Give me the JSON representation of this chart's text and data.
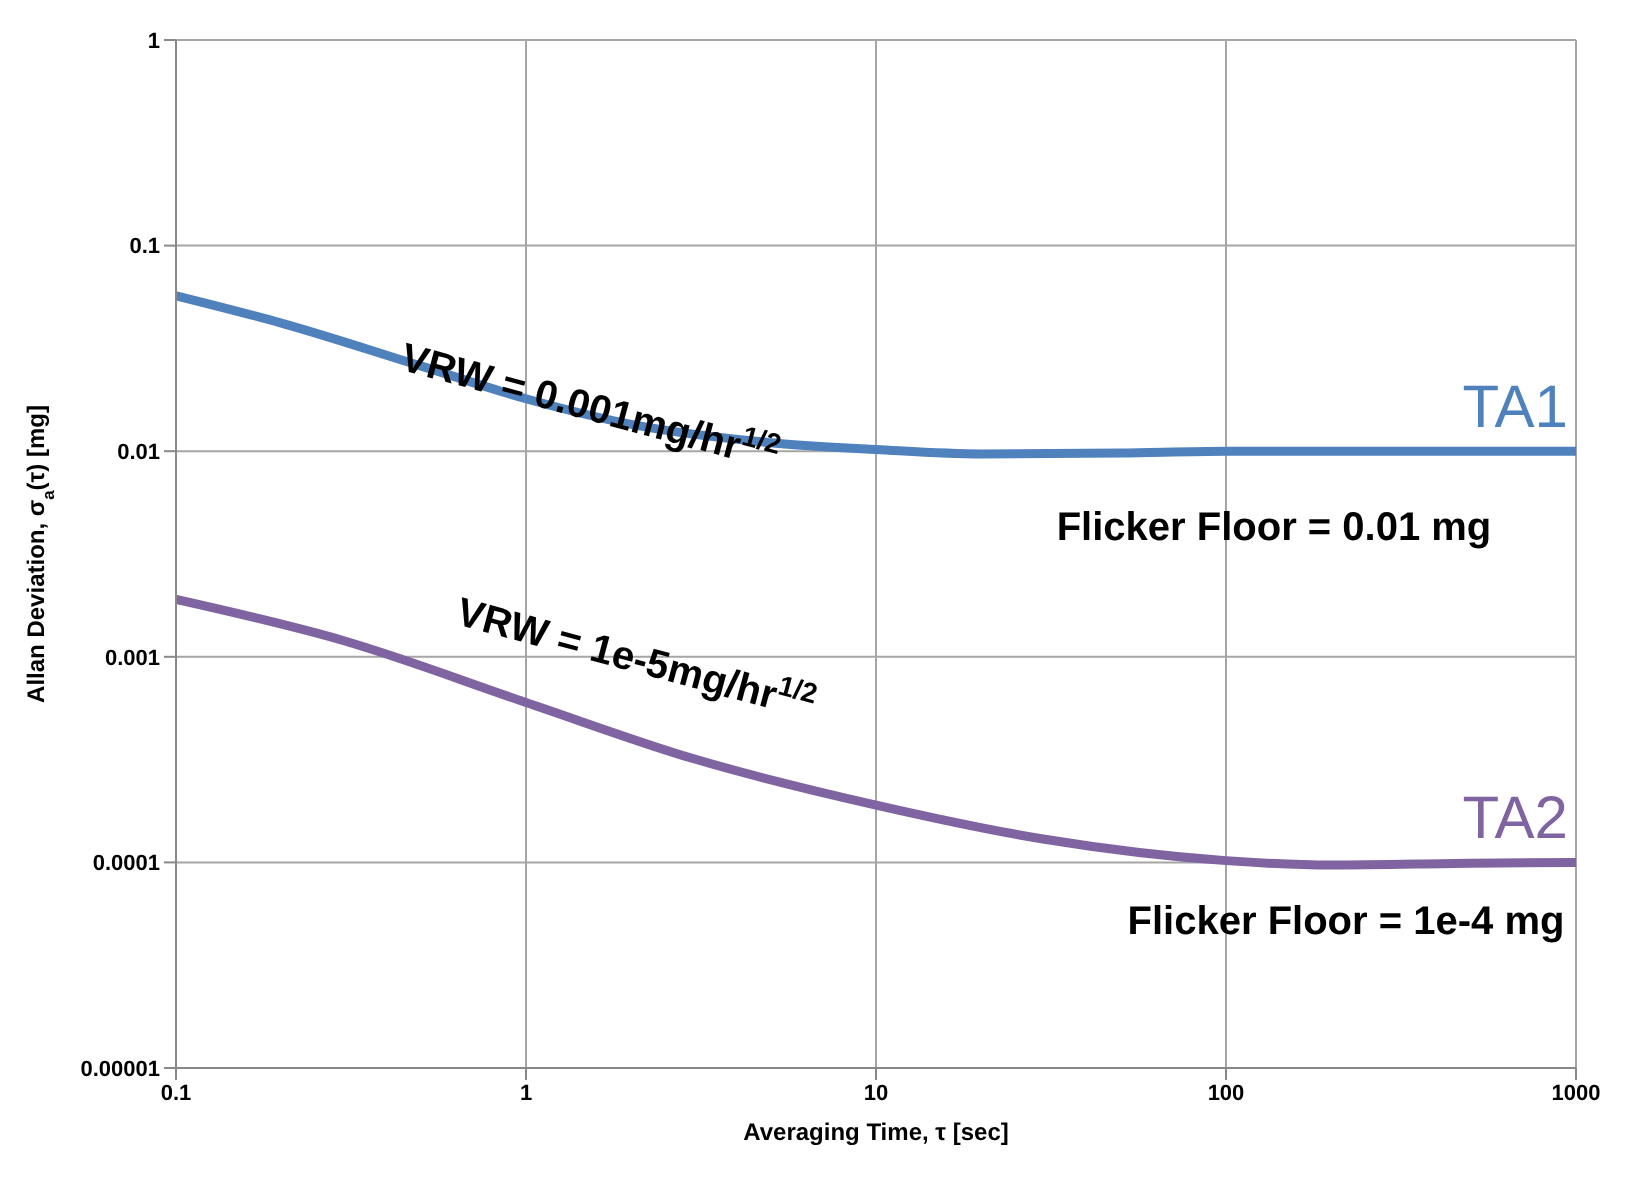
{
  "chart_data": {
    "type": "line",
    "xlabel": "Averaging Time, τ [sec]",
    "ylabel": "Allan Deviation, σ$_{a}$(τ) [mg]",
    "log": "xy",
    "grid": true,
    "marker": "none",
    "line_style": "solid",
    "xlim": [
      0.1,
      1000
    ],
    "xticks": [
      0.1,
      1,
      10,
      100,
      1000
    ],
    "ylim": [
      1e-05,
      1
    ],
    "yticks": [
      {
        "value": 1e-05,
        "label": "0.00001"
      },
      0.0001,
      0.001,
      0.01,
      0.1,
      1
    ],
    "series": [
      {
        "name": "TA1",
        "color": "#4f81bd",
        "x": [
          0.1,
          0.2,
          0.5,
          1,
          2,
          5,
          10,
          20,
          50,
          100,
          300,
          1000
        ],
        "values": [
          0.057,
          0.042,
          0.026,
          0.018,
          0.0135,
          0.011,
          0.0102,
          0.0097,
          0.0098,
          0.01,
          0.01,
          0.01
        ]
      },
      {
        "name": "TA2",
        "color": "#8064a2",
        "x": [
          0.1,
          0.3,
          1,
          3,
          10,
          30,
          100,
          200,
          500,
          1000
        ],
        "values": [
          0.0019,
          0.0012,
          0.0006,
          0.00032,
          0.00019,
          0.00013,
          0.000102,
          9.7e-05,
          9.9e-05,
          0.0001
        ]
      }
    ],
    "annotations": [
      "VRW = 0.001mg/hr$^{1/2}$",
      "VRW = 1e-5mg/hr$^{1/2}$",
      "Flicker Floor = 0.01 mg",
      "Flicker Floor = 1e-4 mg"
    ]
  }
}
